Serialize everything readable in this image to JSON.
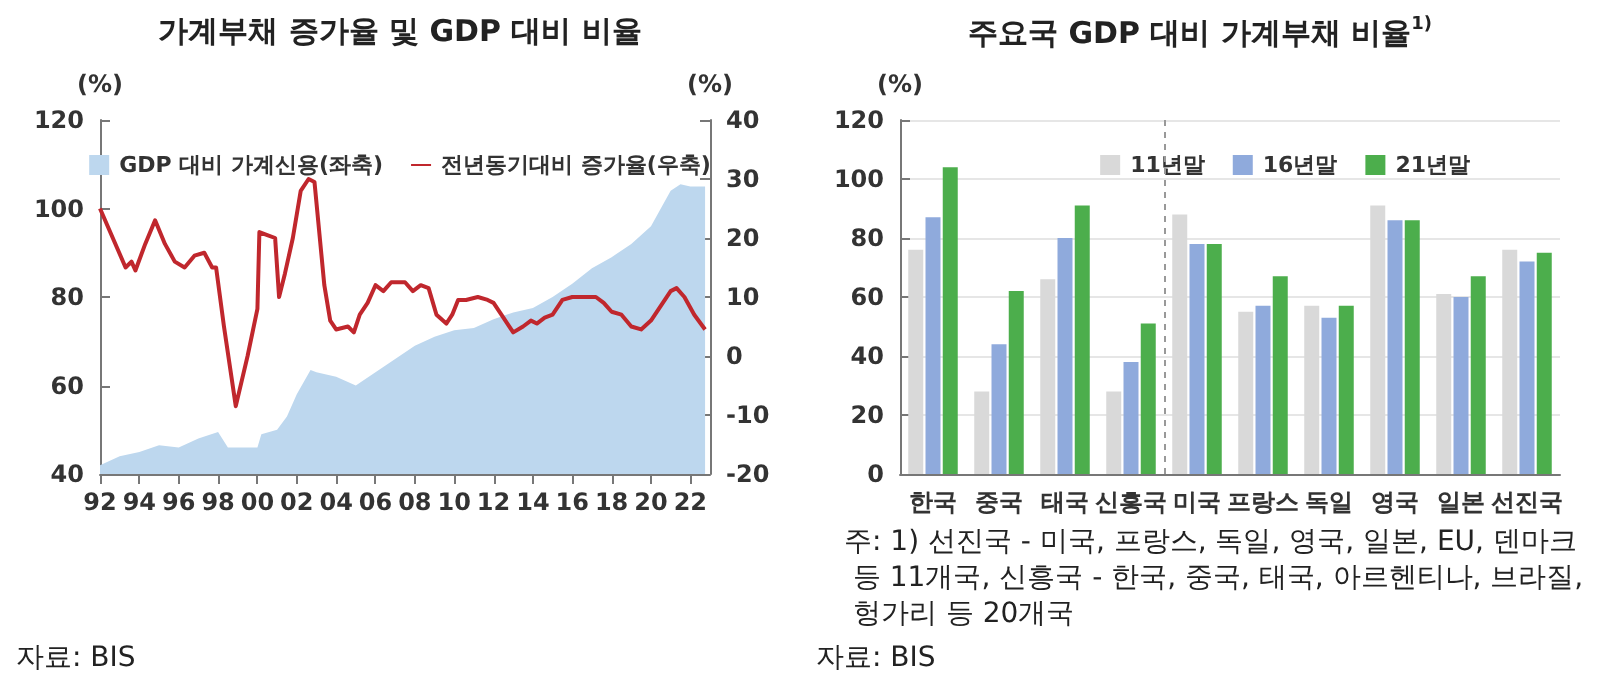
{
  "chart_data": [
    {
      "type": "area",
      "title": "가계부채 증가율 및 GDP 대비 비율",
      "ylabel": "(%)",
      "y2label": "(%)",
      "annotations": [
        "자료: BIS"
      ],
      "xlim": [
        1992,
        2023
      ],
      "xticks": [
        {
          "value": 1992,
          "label": "92"
        },
        {
          "value": 1994,
          "label": "94"
        },
        {
          "value": 1996,
          "label": "96"
        },
        {
          "value": 1998,
          "label": "98"
        },
        {
          "value": 2000,
          "label": "00"
        },
        {
          "value": 2002,
          "label": "02"
        },
        {
          "value": 2004,
          "label": "04"
        },
        {
          "value": 2006,
          "label": "06"
        },
        {
          "value": 2008,
          "label": "08"
        },
        {
          "value": 2010,
          "label": "10"
        },
        {
          "value": 2012,
          "label": "12"
        },
        {
          "value": 2014,
          "label": "14"
        },
        {
          "value": 2016,
          "label": "16"
        },
        {
          "value": 2018,
          "label": "18"
        },
        {
          "value": 2020,
          "label": "20"
        },
        {
          "value": 2022,
          "label": "22"
        }
      ],
      "ylim": [
        40,
        120
      ],
      "yticks": [
        40,
        60,
        80,
        100,
        120
      ],
      "y2lim": [
        -20,
        40
      ],
      "y2ticks": [
        -20,
        -10,
        0,
        10,
        20,
        30,
        40
      ],
      "legend": "top",
      "grid": false,
      "series": [
        {
          "name": "GDP 대비 가계신용(좌축)",
          "color": "#bdd7ee",
          "x": [
            1992,
            1993,
            1994,
            1995,
            1996,
            1997,
            1998,
            1998.5,
            1999,
            2000,
            2000.2,
            2001,
            2001.5,
            2002,
            2002.7,
            2003,
            2004,
            2005,
            2006,
            2007,
            2008,
            2009,
            2010,
            2011,
            2012,
            2013,
            2014,
            2015,
            2016,
            2017,
            2018,
            2019,
            2020,
            2020.5,
            2021,
            2021.5,
            2022,
            2022.75
          ],
          "values": [
            42,
            44,
            45,
            46.5,
            46,
            48,
            49.5,
            46,
            46,
            46,
            49,
            50,
            53,
            58,
            63.5,
            63,
            62,
            60,
            63,
            66,
            69,
            71,
            72.5,
            73,
            75,
            76.5,
            77.5,
            80,
            83,
            86.5,
            89,
            92,
            96,
            100,
            104,
            105.5,
            105,
            105
          ]
        },
        {
          "name": "전년동기대비 증가율(우축)",
          "type": "line",
          "axis": "y2",
          "color": "#c0272d",
          "x": [
            1992,
            1993.3,
            1993.6,
            1993.8,
            1994.3,
            1994.8,
            1995.3,
            1995.8,
            1996.3,
            1996.8,
            1997.3,
            1997.7,
            1997.9,
            1998.3,
            1998.9,
            1999.5,
            2000,
            2000.1,
            2000.5,
            2000.9,
            2001.1,
            2001.4,
            2001.8,
            2002.2,
            2002.6,
            2002.9,
            2003.4,
            2003.7,
            2004,
            2004.6,
            2004.9,
            2005.2,
            2005.6,
            2006,
            2006.4,
            2006.8,
            2007.5,
            2007.9,
            2008.3,
            2008.7,
            2009.1,
            2009.6,
            2009.9,
            2010.2,
            2010.6,
            2011.2,
            2011.7,
            2012,
            2012.5,
            2013,
            2013.5,
            2013.9,
            2014.2,
            2014.6,
            2015,
            2015.5,
            2016,
            2016.5,
            2017.2,
            2017.6,
            2018,
            2018.5,
            2019,
            2019.5,
            2020,
            2020.5,
            2021,
            2021.3,
            2021.7,
            2022.2,
            2022.75
          ],
          "values": [
            25,
            15,
            16,
            14.5,
            19,
            23,
            19,
            16,
            15,
            17,
            17.5,
            15,
            15,
            5,
            -8.5,
            0,
            8,
            21,
            20.5,
            20,
            10,
            14,
            20,
            28,
            30,
            29.5,
            12,
            6,
            4.5,
            5,
            4,
            7,
            9,
            12,
            11,
            12.5,
            12.5,
            11,
            12,
            11.5,
            7,
            5.5,
            7,
            9.5,
            9.5,
            10,
            9.5,
            9,
            6.5,
            4,
            5,
            6,
            5.5,
            6.5,
            7,
            9.5,
            10,
            10,
            10,
            9,
            7.5,
            7,
            5,
            4.5,
            6,
            8.5,
            11,
            11.5,
            10,
            7,
            4.5
          ]
        }
      ]
    },
    {
      "type": "bar",
      "title": "주요국 GDP 대비 가계부채 비율$^{1)}$",
      "ylabel": "(%)",
      "annotations": [
        "주: 1) 선진국 - 미국, 프랑스, 독일, 영국, 일본, EU, 덴마크 등 11개국, 신흥국 - 한국, 중국, 태국, 아르헨티나, 브라질, 헝가리 등 20개국",
        "자료: BIS"
      ],
      "categories": [
        "한국",
        "중국",
        "태국",
        "신흥국",
        "미국",
        "프랑스",
        "독일",
        "영국",
        "일본",
        "선진국"
      ],
      "ylim": [
        0,
        120
      ],
      "yticks": [
        0,
        20,
        40,
        60,
        80,
        100,
        120
      ],
      "legend": "top right",
      "grid": "y",
      "series": [
        {
          "name": "11년말",
          "color": "#d9d9d9",
          "values": [
            76,
            28,
            66,
            28,
            88,
            55,
            57,
            91,
            61,
            76
          ]
        },
        {
          "name": "16년말",
          "color": "#8faadc",
          "values": [
            87,
            44,
            80,
            38,
            78,
            57,
            53,
            86,
            60,
            72
          ]
        },
        {
          "name": "21년말",
          "color": "#4cae4c",
          "values": [
            104,
            62,
            91,
            51,
            78,
            67,
            57,
            86,
            67,
            75
          ]
        }
      ]
    }
  ]
}
